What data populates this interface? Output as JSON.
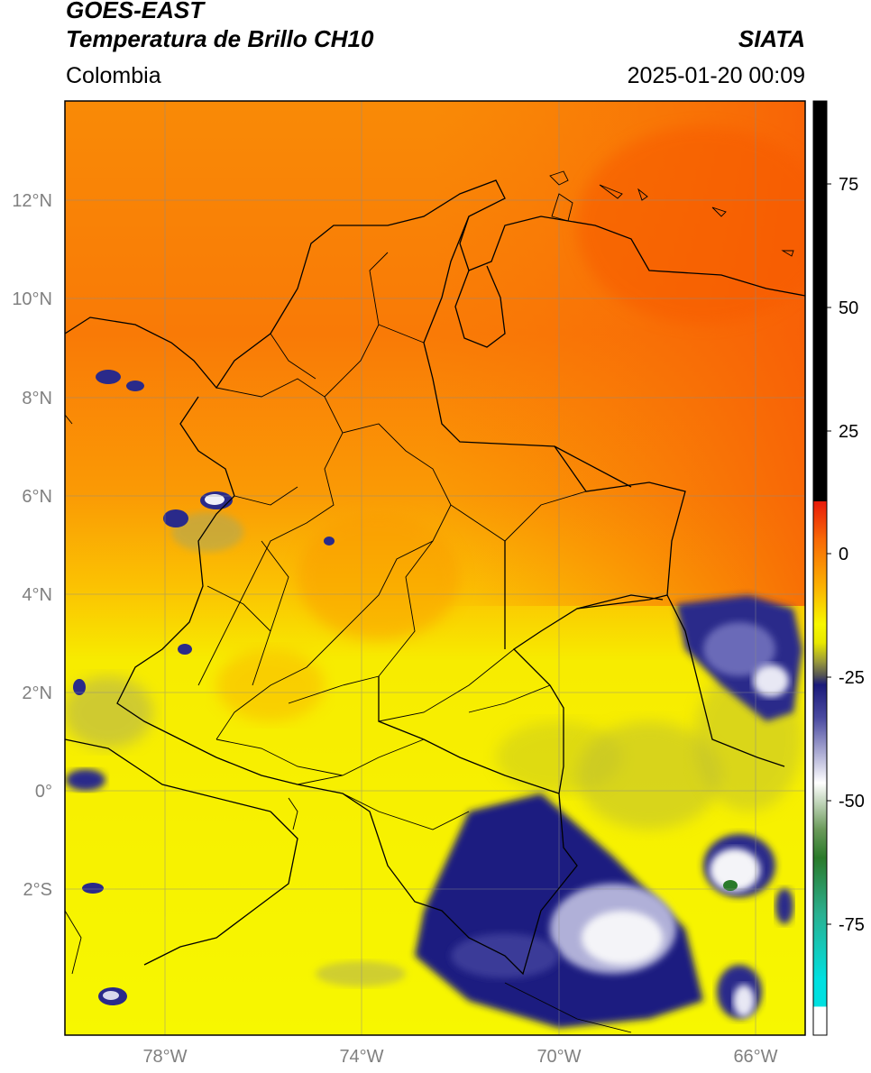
{
  "header": {
    "satellite": "GOES-EAST",
    "product": "Temperatura de Brillo CH10",
    "agency": "SIATA",
    "region": "Colombia",
    "datetime": "2025-01-20 00:09"
  },
  "map": {
    "lon_range": [
      -80,
      -65
    ],
    "lat_range": [
      -5,
      14
    ],
    "lat_ticks": [
      "12°N",
      "10°N",
      "8°N",
      "6°N",
      "4°N",
      "2°N",
      "0°",
      "2°S"
    ],
    "lon_ticks": [
      "78°W",
      "74°W",
      "70°W",
      "66°W"
    ],
    "grid": true,
    "colors": {
      "warm_dry": "#f96a06",
      "mid": "#fbaa04",
      "clear": "#f7f700",
      "cloud_dark": "#1a1a7a",
      "cloud_white": "#ffffff",
      "border": "#000000"
    }
  },
  "colorbar": {
    "ticks": [
      "75",
      "50",
      "25",
      "0",
      "-25",
      "-50",
      "-75"
    ],
    "range": [
      -95,
      90
    ],
    "units_note": ""
  }
}
